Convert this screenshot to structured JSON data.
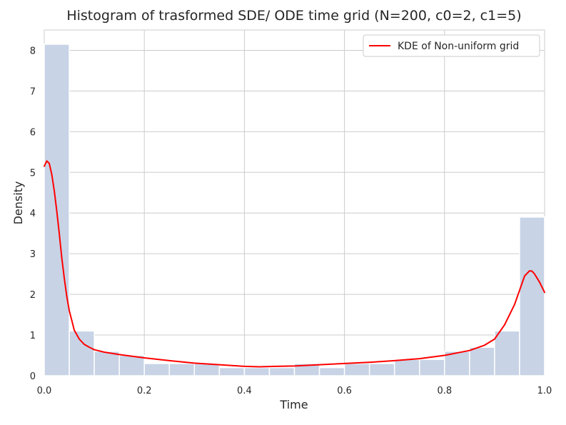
{
  "chart_data": {
    "type": "bar",
    "title": "Histogram of trasformed SDE/ ODE time grid (N=200, c0=2, c1=5)",
    "xlabel": "Time",
    "ylabel": "Density",
    "xlim": [
      0.0,
      1.0
    ],
    "ylim": [
      0,
      8.5
    ],
    "xticks": [
      "0.0",
      "0.2",
      "0.4",
      "0.6",
      "0.8",
      "1.0"
    ],
    "xtick_values": [
      0.0,
      0.2,
      0.4,
      0.6,
      0.8,
      1.0
    ],
    "yticks": [
      "0",
      "1",
      "2",
      "3",
      "4",
      "5",
      "6",
      "7",
      "8"
    ],
    "ytick_values": [
      0,
      1,
      2,
      3,
      4,
      5,
      6,
      7,
      8
    ],
    "grid": true,
    "legend_position": "top-right",
    "bar_color": "#c8d3e6",
    "line_color": "#ff0000",
    "histogram": {
      "bin_edges": [
        0.0,
        0.05,
        0.1,
        0.15,
        0.2,
        0.25,
        0.3,
        0.35,
        0.4,
        0.45,
        0.5,
        0.55,
        0.6,
        0.65,
        0.7,
        0.75,
        0.8,
        0.85,
        0.9,
        0.95,
        1.0
      ],
      "values": [
        8.15,
        1.1,
        0.6,
        0.5,
        0.3,
        0.3,
        0.3,
        0.2,
        0.2,
        0.2,
        0.3,
        0.2,
        0.3,
        0.3,
        0.4,
        0.4,
        0.6,
        0.7,
        1.1,
        3.9
      ]
    },
    "series": [
      {
        "name": "KDE of Non-uniform grid",
        "type": "line",
        "x": [
          0.0,
          0.005,
          0.01,
          0.015,
          0.02,
          0.025,
          0.03,
          0.035,
          0.04,
          0.045,
          0.05,
          0.06,
          0.07,
          0.08,
          0.09,
          0.1,
          0.12,
          0.15,
          0.2,
          0.25,
          0.3,
          0.35,
          0.4,
          0.43,
          0.5,
          0.55,
          0.6,
          0.65,
          0.7,
          0.75,
          0.8,
          0.85,
          0.88,
          0.9,
          0.92,
          0.94,
          0.95,
          0.96,
          0.97,
          0.975,
          0.98,
          0.99,
          1.0
        ],
        "y": [
          5.15,
          5.28,
          5.22,
          4.95,
          4.55,
          4.05,
          3.5,
          2.9,
          2.4,
          1.95,
          1.6,
          1.12,
          0.9,
          0.77,
          0.7,
          0.64,
          0.58,
          0.52,
          0.44,
          0.37,
          0.31,
          0.27,
          0.23,
          0.22,
          0.24,
          0.27,
          0.3,
          0.33,
          0.37,
          0.42,
          0.5,
          0.62,
          0.75,
          0.9,
          1.25,
          1.75,
          2.1,
          2.45,
          2.58,
          2.57,
          2.5,
          2.3,
          2.05
        ]
      }
    ]
  }
}
